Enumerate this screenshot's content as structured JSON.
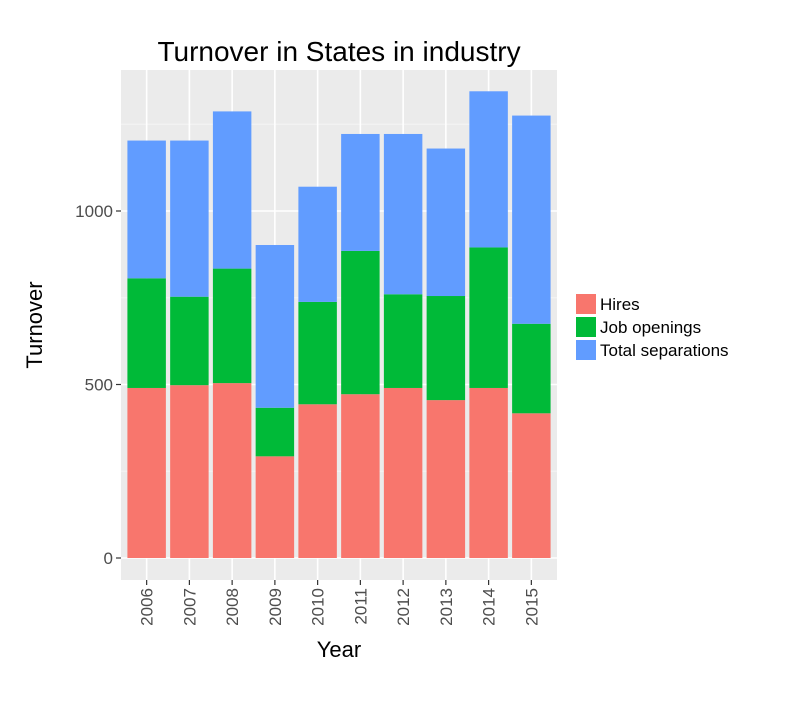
{
  "chart_data": {
    "type": "bar",
    "stacked": true,
    "title": "Turnover in States in industry",
    "xlabel": "Year",
    "ylabel": "Turnover",
    "categories": [
      "2006",
      "2007",
      "2008",
      "2009",
      "2010",
      "2011",
      "2012",
      "2013",
      "2014",
      "2015"
    ],
    "series": [
      {
        "name": "Hires",
        "color": "#F8766D",
        "values": [
          490,
          498,
          504,
          293,
          443,
          472,
          490,
          455,
          490,
          417
        ]
      },
      {
        "name": "Job openings",
        "color": "#00BA38",
        "values": [
          316,
          255,
          330,
          140,
          295,
          413,
          270,
          300,
          405,
          258
        ]
      },
      {
        "name": "Total separations",
        "color": "#619CFF",
        "values": [
          397,
          450,
          453,
          469,
          332,
          337,
          462,
          425,
          450,
          600
        ]
      }
    ],
    "yticks": [
      0,
      500,
      1000
    ],
    "ylim": [
      0,
      1400
    ],
    "grid": true,
    "legend_position": "right"
  }
}
